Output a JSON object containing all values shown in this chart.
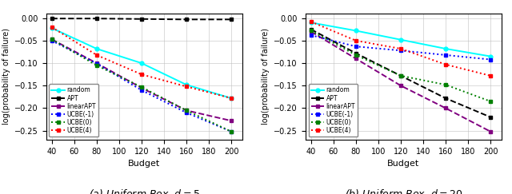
{
  "budget": [
    40,
    80,
    120,
    160,
    200
  ],
  "subplot1": {
    "title": "(a) Uniform Box, $d = 5$",
    "random": [
      -0.022,
      -0.068,
      -0.1,
      -0.148,
      -0.178
    ],
    "APT": [
      -0.001,
      -0.001,
      -0.002,
      -0.003,
      -0.003
    ],
    "linearAPT": [
      -0.047,
      -0.1,
      -0.155,
      -0.205,
      -0.228
    ],
    "UCBE_m1": [
      -0.05,
      -0.101,
      -0.16,
      -0.21,
      -0.252
    ],
    "UCBE_0": [
      -0.047,
      -0.105,
      -0.153,
      -0.205,
      -0.252
    ],
    "UCBE_4": [
      -0.02,
      -0.082,
      -0.125,
      -0.152,
      -0.178
    ]
  },
  "subplot2": {
    "title": "(b) Uniform Box, $d = 20$",
    "random": [
      -0.01,
      -0.028,
      -0.048,
      -0.068,
      -0.085
    ],
    "APT": [
      -0.025,
      -0.078,
      -0.128,
      -0.178,
      -0.22
    ],
    "linearAPT": [
      -0.03,
      -0.09,
      -0.15,
      -0.2,
      -0.252
    ],
    "UCBE_m1": [
      -0.038,
      -0.063,
      -0.072,
      -0.082,
      -0.092
    ],
    "UCBE_0": [
      -0.028,
      -0.082,
      -0.128,
      -0.148,
      -0.185
    ],
    "UCBE_4": [
      -0.008,
      -0.05,
      -0.068,
      -0.103,
      -0.128
    ]
  },
  "colors": {
    "random": "#00ffff",
    "APT": "#000000",
    "linearAPT": "#800080",
    "UCBE_m1": "#0000ff",
    "UCBE_0": "#008000",
    "UCBE_4": "#ff0000"
  },
  "series_styles": {
    "random": {
      "linestyle": "-",
      "marker": "o",
      "markersize": 3.5,
      "linewidth": 1.4,
      "dashes": []
    },
    "APT": {
      "linestyle": "--",
      "marker": "s",
      "markersize": 3.5,
      "linewidth": 1.4,
      "dashes": [
        4,
        2
      ]
    },
    "linearAPT": {
      "linestyle": "--",
      "marker": "s",
      "markersize": 3.5,
      "linewidth": 1.4,
      "dashes": [
        4,
        2
      ]
    },
    "UCBE_m1": {
      "linestyle": ":",
      "marker": "s",
      "markersize": 3.5,
      "linewidth": 1.4,
      "dashes": [
        1,
        2
      ]
    },
    "UCBE_0": {
      "linestyle": ":",
      "marker": "s",
      "markersize": 3.5,
      "linewidth": 1.4,
      "dashes": [
        1,
        2
      ]
    },
    "UCBE_4": {
      "linestyle": ":",
      "marker": "s",
      "markersize": 3.5,
      "linewidth": 1.4,
      "dashes": [
        1,
        2
      ]
    }
  },
  "legend_labels": {
    "random": "random",
    "APT": "APT",
    "linearAPT": "linearAPT",
    "UCBE_m1": "UCBE(-1)",
    "UCBE_0": "UCBE(0)",
    "UCBE_4": "UCBE(4)"
  },
  "ylabel": "log(probability of failure)",
  "xlabel": "Budget",
  "ylim": [
    -0.27,
    0.01
  ],
  "xlim": [
    35,
    210
  ],
  "xticks": [
    40,
    60,
    80,
    100,
    120,
    140,
    160,
    180,
    200
  ],
  "yticks": [
    0.0,
    -0.05,
    -0.1,
    -0.15,
    -0.2,
    -0.25
  ]
}
